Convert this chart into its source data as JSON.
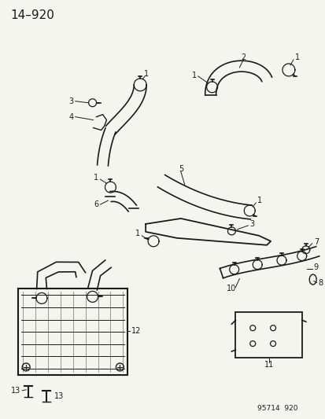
{
  "title": "14–920",
  "footer": "95714  920",
  "bg_color": "#f5f5f0",
  "line_color": "#1a1a1a",
  "title_fontsize": 11,
  "label_fontsize": 7,
  "fig_width": 4.14,
  "fig_height": 5.33,
  "dpi": 100
}
